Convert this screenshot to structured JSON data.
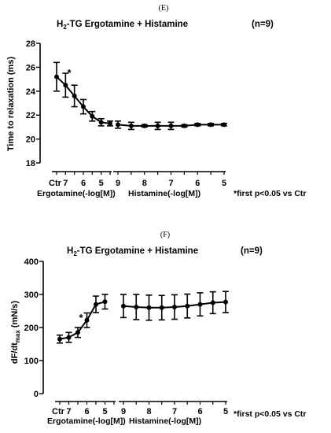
{
  "chart_data": [
    {
      "type": "line",
      "panel_label": "(E)",
      "title_prefix": "H",
      "title_sub": "2",
      "title_rest": "-TG Ergotamine + Histamine",
      "n_label": "(n=9)",
      "ylabel": "Time to relaxation (ms)",
      "ylim": [
        18,
        28
      ],
      "yticks": [
        18,
        20,
        22,
        24,
        26,
        28
      ],
      "segments": [
        {
          "name": "Ergotamine(-log[M])",
          "tick_labels": [
            "Ctr",
            "7",
            "6",
            "5"
          ],
          "x": [
            0,
            1,
            2,
            3,
            4,
            5,
            6
          ],
          "y": [
            25.2,
            24.5,
            23.6,
            22.7,
            21.9,
            21.4,
            21.3
          ],
          "err": [
            1.2,
            1.0,
            0.9,
            0.6,
            0.4,
            0.3,
            0.2
          ]
        },
        {
          "name": "Histamine(-log[M])",
          "tick_labels": [
            "9",
            "8",
            "7",
            "6",
            "5"
          ],
          "x": [
            0,
            1,
            2,
            3,
            4,
            5,
            6,
            7,
            8
          ],
          "y": [
            21.2,
            21.1,
            21.1,
            21.1,
            21.1,
            21.1,
            21.2,
            21.2,
            21.2
          ],
          "err": [
            0.3,
            0.3,
            0.1,
            0.3,
            0.3,
            0.1,
            0.1,
            0.1,
            0.1
          ]
        }
      ],
      "significance_marker": "*",
      "footnote": "*first p<0.05 vs Ctr"
    },
    {
      "type": "line",
      "panel_label": "(F)",
      "title_prefix": "H",
      "title_sub": "2",
      "title_rest": "-TG Ergotamine + Histamine",
      "n_label": "(n=9)",
      "ylabel_main": "dF/dt",
      "ylabel_sub": "max",
      "ylabel_rest": " (mN/s)",
      "ylim": [
        0,
        400
      ],
      "yticks": [
        0,
        100,
        200,
        300,
        400
      ],
      "segments": [
        {
          "name": "Ergotamine(-log[M])",
          "tick_labels": [
            "Ctr",
            "7",
            "6",
            "5"
          ],
          "x": [
            0,
            1,
            2,
            3,
            4,
            5,
            6
          ],
          "y": [
            165,
            170,
            185,
            222,
            270,
            278,
            0
          ],
          "err": [
            12,
            15,
            15,
            22,
            25,
            22,
            0
          ]
        },
        {
          "name": "Histamine(-log[M])",
          "tick_labels": [
            "9",
            "8",
            "7",
            "6",
            "5"
          ],
          "x": [
            0,
            1,
            2,
            3,
            4,
            5,
            6,
            7,
            8
          ],
          "y": [
            265,
            262,
            260,
            260,
            262,
            265,
            270,
            275,
            277
          ],
          "err": [
            35,
            38,
            38,
            37,
            37,
            36,
            35,
            33,
            32
          ]
        }
      ],
      "significance_marker": "*",
      "footnote": "*first p<0.05 vs Ctr"
    }
  ]
}
